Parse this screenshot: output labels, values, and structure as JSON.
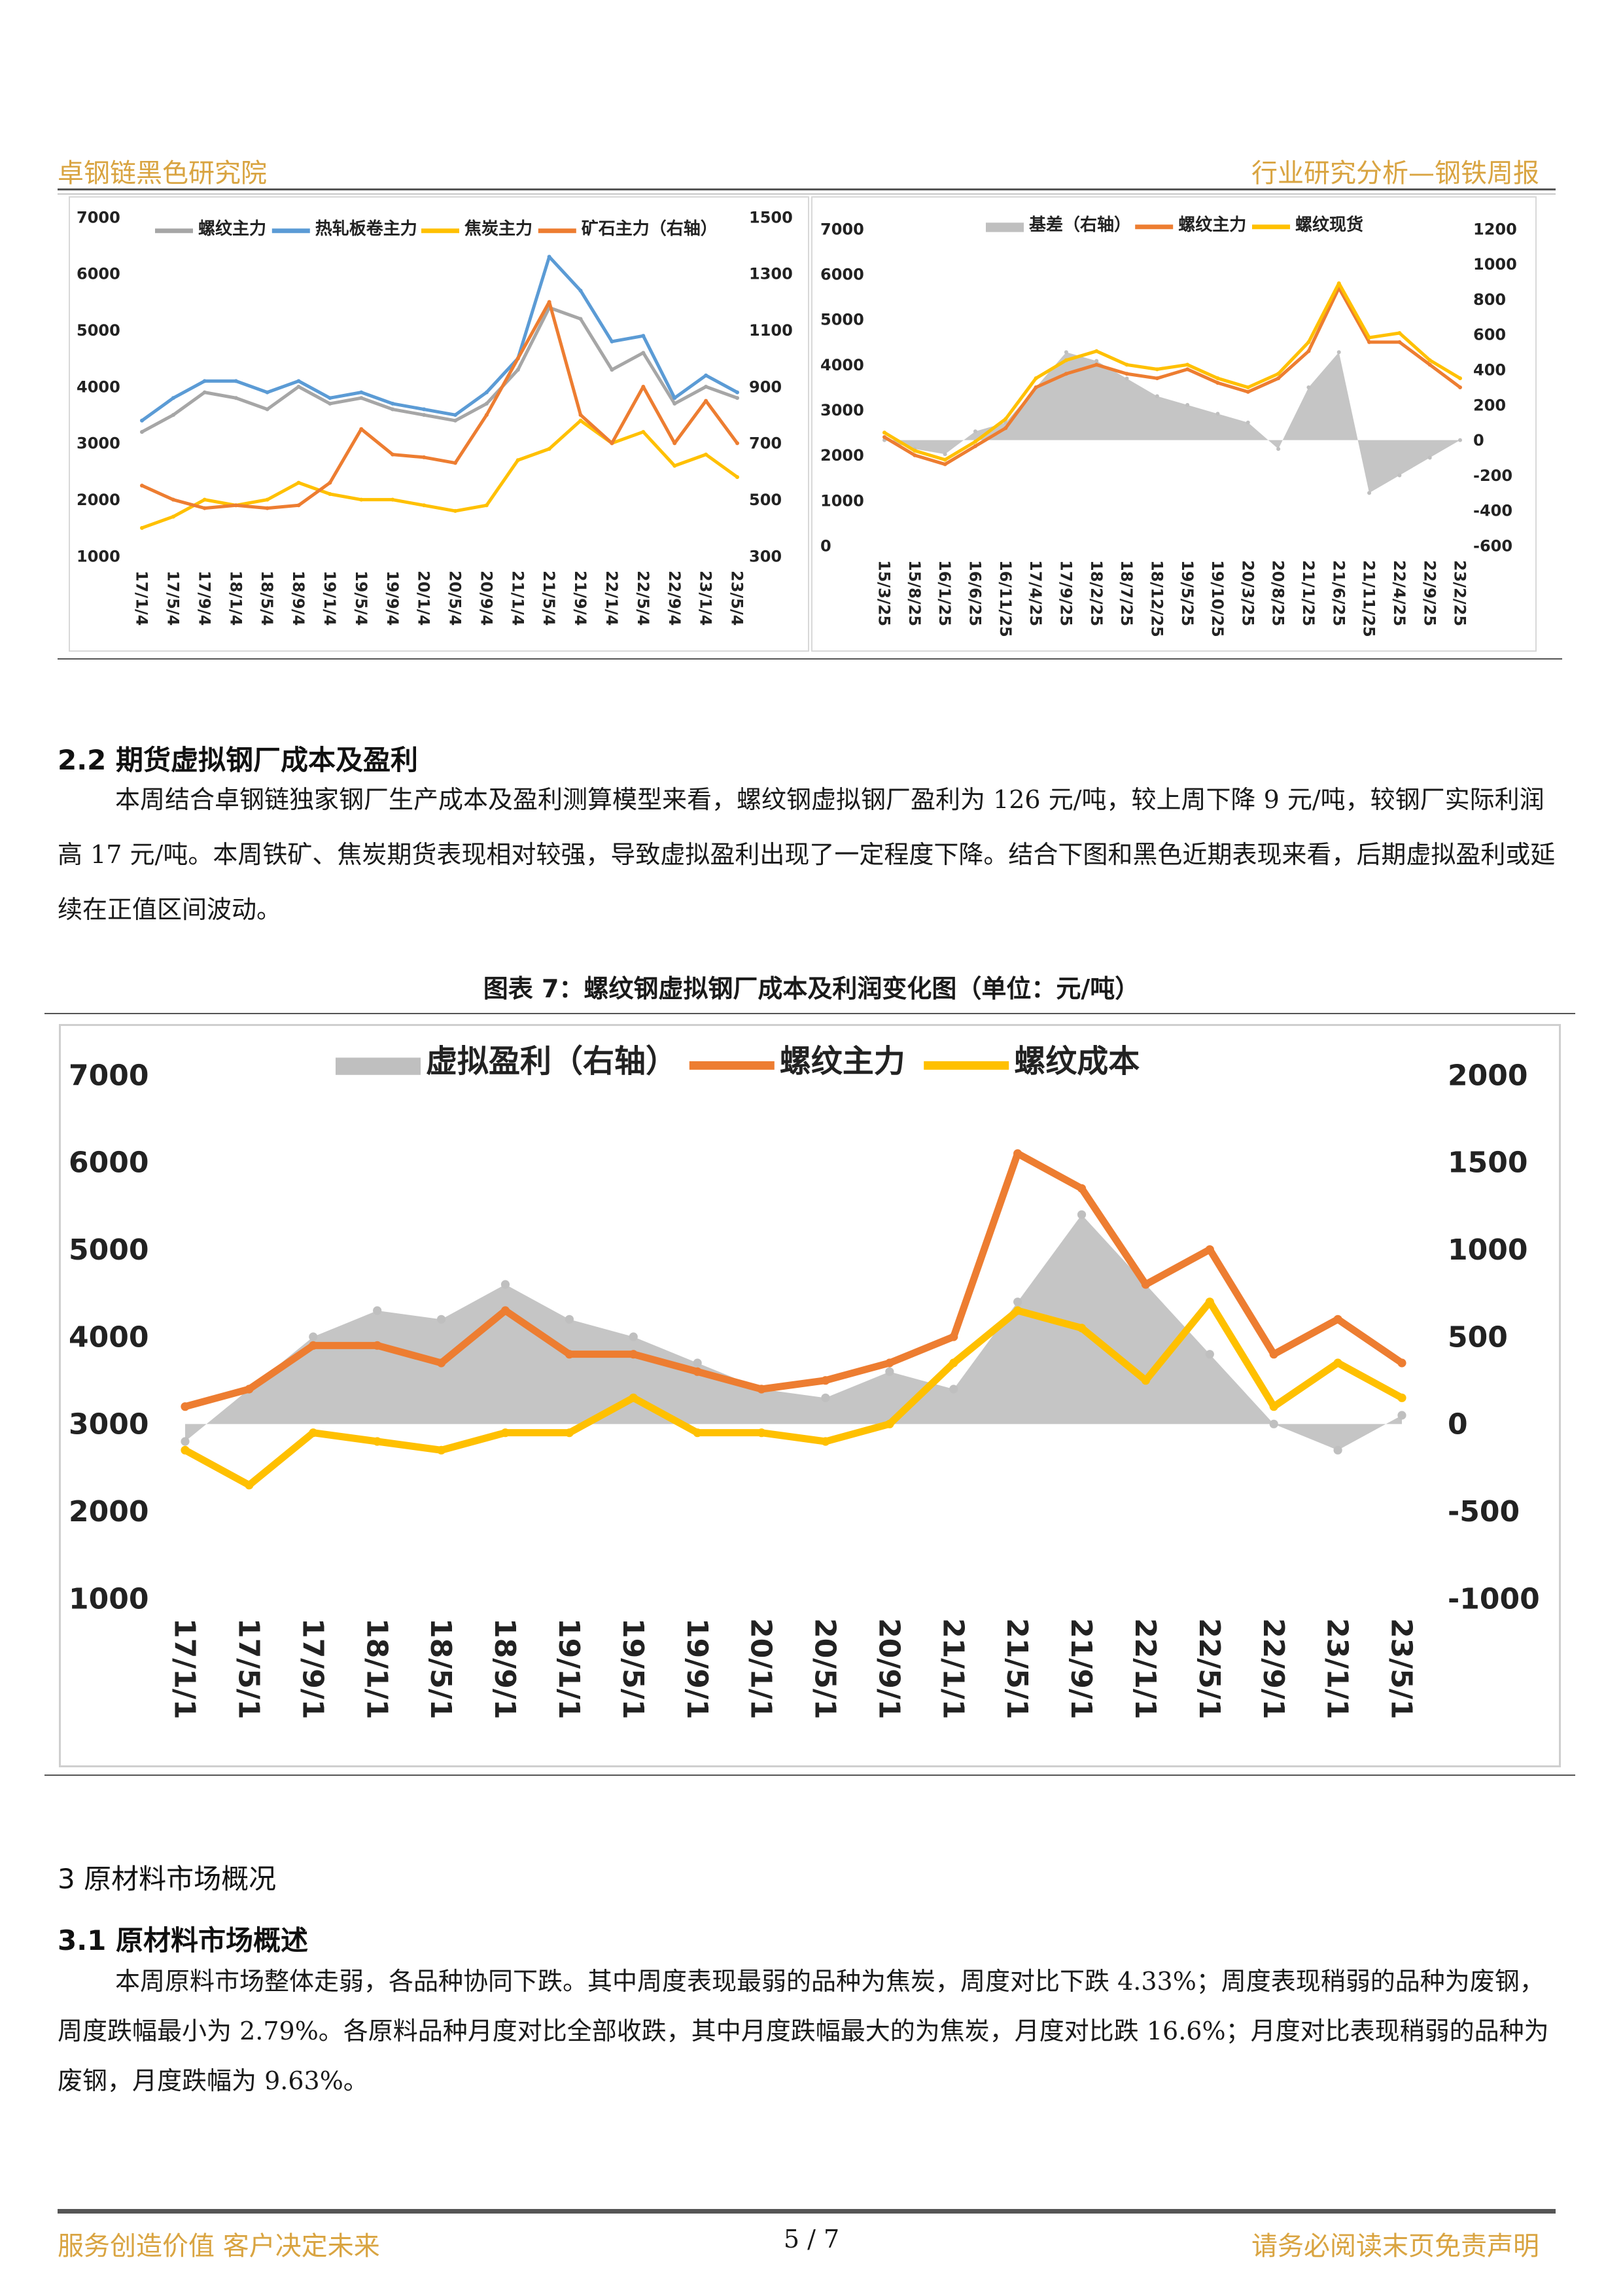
{
  "header": {
    "left": "卓钢链黑色研究院",
    "right": "行业研究分析—钢铁周报"
  },
  "chart_data": [
    {
      "type": "line",
      "categories": [
        "17/1/4",
        "17/5/4",
        "17/9/4",
        "18/1/4",
        "18/5/4",
        "18/9/4",
        "19/1/4",
        "19/5/4",
        "19/9/4",
        "20/1/4",
        "20/5/4",
        "20/9/4",
        "21/1/4",
        "21/5/4",
        "21/9/4",
        "22/1/4",
        "22/5/4",
        "22/9/4",
        "23/1/4",
        "23/5/4"
      ],
      "y_left": {
        "ylim": [
          1000,
          7000
        ],
        "ticks": [
          "7000",
          "6000",
          "5000",
          "4000",
          "3000",
          "2000",
          "1000"
        ]
      },
      "y_right": {
        "ylim": [
          300,
          1500
        ],
        "ticks": [
          "1500",
          "1300",
          "1100",
          "900",
          "700",
          "500",
          "300"
        ]
      },
      "series": [
        {
          "name": "螺纹主力",
          "color": "#a6a6a6",
          "axis": "left",
          "values": [
            3200,
            3500,
            3900,
            3800,
            3600,
            4000,
            3700,
            3800,
            3600,
            3500,
            3400,
            3700,
            4300,
            5400,
            5200,
            4300,
            4600,
            3700,
            4000,
            3800
          ]
        },
        {
          "name": "热轧板卷主力",
          "color": "#5b9bd5",
          "axis": "left",
          "values": [
            3400,
            3800,
            4100,
            4100,
            3900,
            4100,
            3800,
            3900,
            3700,
            3600,
            3500,
            3900,
            4500,
            6300,
            5700,
            4800,
            4900,
            3800,
            4200,
            3900
          ]
        },
        {
          "name": "焦炭主力",
          "color": "#ffc000",
          "axis": "left",
          "values": [
            1500,
            1700,
            2000,
            1900,
            2000,
            2300,
            2100,
            2000,
            2000,
            1900,
            1800,
            1900,
            2700,
            2900,
            3400,
            3000,
            3200,
            2600,
            2800,
            2400
          ]
        },
        {
          "name": "矿石主力（右轴）",
          "color": "#ed7d31",
          "axis": "right",
          "values": [
            550,
            500,
            470,
            480,
            470,
            480,
            560,
            750,
            660,
            650,
            630,
            800,
            1000,
            1200,
            800,
            700,
            900,
            700,
            850,
            700
          ]
        }
      ]
    },
    {
      "type": "line",
      "categories": [
        "15/3/25",
        "15/8/25",
        "16/1/25",
        "16/6/25",
        "16/11/25",
        "17/4/25",
        "17/9/25",
        "18/2/25",
        "18/7/25",
        "18/12/25",
        "19/5/25",
        "19/10/25",
        "20/3/25",
        "20/8/25",
        "21/1/25",
        "21/6/25",
        "21/11/25",
        "22/4/25",
        "22/9/25",
        "23/2/25"
      ],
      "y_left": {
        "ylim": [
          0,
          7000
        ],
        "ticks": [
          "7000",
          "6000",
          "5000",
          "4000",
          "3000",
          "2000",
          "1000",
          "0"
        ]
      },
      "y_right": {
        "ylim": [
          -600,
          1200
        ],
        "ticks": [
          "1200",
          "1000",
          "800",
          "600",
          "400",
          "200",
          "0",
          "-200",
          "-400",
          "-600"
        ]
      },
      "series": [
        {
          "name": "基差（右轴）",
          "color": "#bfbfbf",
          "axis": "right",
          "render": "area",
          "values": [
            0,
            -50,
            -80,
            50,
            100,
            300,
            500,
            450,
            350,
            250,
            200,
            150,
            100,
            -50,
            300,
            500,
            -300,
            -200,
            -100,
            0
          ]
        },
        {
          "name": "螺纹主力",
          "color": "#ed7d31",
          "axis": "left",
          "values": [
            2400,
            2000,
            1800,
            2200,
            2600,
            3500,
            3800,
            4000,
            3800,
            3700,
            3900,
            3600,
            3400,
            3700,
            4300,
            5700,
            4500,
            4500,
            4000,
            3500
          ]
        },
        {
          "name": "螺纹现货",
          "color": "#ffc000",
          "axis": "left",
          "values": [
            2500,
            2100,
            1900,
            2300,
            2800,
            3700,
            4100,
            4300,
            4000,
            3900,
            4000,
            3700,
            3500,
            3800,
            4500,
            5800,
            4600,
            4700,
            4100,
            3700
          ]
        }
      ]
    },
    {
      "type": "line",
      "title": "图表 7：螺纹钢虚拟钢厂成本及利润变化图（单位：元/吨）",
      "categories": [
        "17/1/1",
        "17/5/1",
        "17/9/1",
        "18/1/1",
        "18/5/1",
        "18/9/1",
        "19/1/1",
        "19/5/1",
        "19/9/1",
        "20/1/1",
        "20/5/1",
        "20/9/1",
        "21/1/1",
        "21/5/1",
        "21/9/1",
        "22/1/1",
        "22/5/1",
        "22/9/1",
        "23/1/1",
        "23/5/1"
      ],
      "y_left": {
        "ylim": [
          1000,
          7000
        ],
        "ticks": [
          "7000",
          "6000",
          "5000",
          "4000",
          "3000",
          "2000",
          "1000"
        ]
      },
      "y_right": {
        "ylim": [
          -1000,
          2000
        ],
        "ticks": [
          "2000",
          "1500",
          "1000",
          "500",
          "0",
          "-500",
          "-1000"
        ]
      },
      "series": [
        {
          "name": "虚拟盈利（右轴）",
          "color": "#bfbfbf",
          "axis": "right",
          "render": "area",
          "values": [
            -100,
            200,
            500,
            650,
            600,
            800,
            600,
            500,
            350,
            200,
            150,
            300,
            200,
            700,
            1200,
            800,
            400,
            0,
            -150,
            50
          ]
        },
        {
          "name": "螺纹主力",
          "color": "#ed7d31",
          "axis": "left",
          "values": [
            3200,
            3400,
            3900,
            3900,
            3700,
            4300,
            3800,
            3800,
            3600,
            3400,
            3500,
            3700,
            4000,
            6100,
            5700,
            4600,
            5000,
            3800,
            4200,
            3700
          ]
        },
        {
          "name": "螺纹成本",
          "color": "#ffc000",
          "axis": "left",
          "values": [
            2700,
            2300,
            2900,
            2800,
            2700,
            2900,
            2900,
            3300,
            2900,
            2900,
            2800,
            3000,
            3700,
            4300,
            4100,
            3500,
            4400,
            3200,
            3700,
            3300
          ]
        }
      ]
    }
  ],
  "section22": {
    "heading": "2.2 期货虚拟钢厂成本及盈利",
    "para": "本周结合卓钢链独家钢厂生产成本及盈利测算模型来看，螺纹钢虚拟钢厂盈利为 126 元/吨，较上周下降 9 元/吨，较钢厂实际利润高 17 元/吨。本周铁矿、焦炭期货表现相对较强，导致虚拟盈利出现了一定程度下降。结合下图和黑色近期表现来看，后期虚拟盈利或延续在正值区间波动。"
  },
  "caption7": "图表 7：螺纹钢虚拟钢厂成本及利润变化图（单位：元/吨）",
  "section3": {
    "heading": "3 原材料市场概况",
    "subheading": "3.1 原材料市场概述",
    "para": "本周原料市场整体走弱，各品种协同下跌。其中周度表现最弱的品种为焦炭，周度对比下跌 4.33%；周度表现稍弱的品种为废钢，周度跌幅最小为 2.79%。各原料品种月度对比全部收跌，其中月度跌幅最大的为焦炭，月度对比跌 16.6%；月度对比表现稍弱的品种为废钢，月度跌幅为 9.63%。"
  },
  "footer": {
    "left": "服务创造价值 客户决定未来",
    "page": "5 / 7",
    "right": "请务必阅读末页免责声明"
  }
}
